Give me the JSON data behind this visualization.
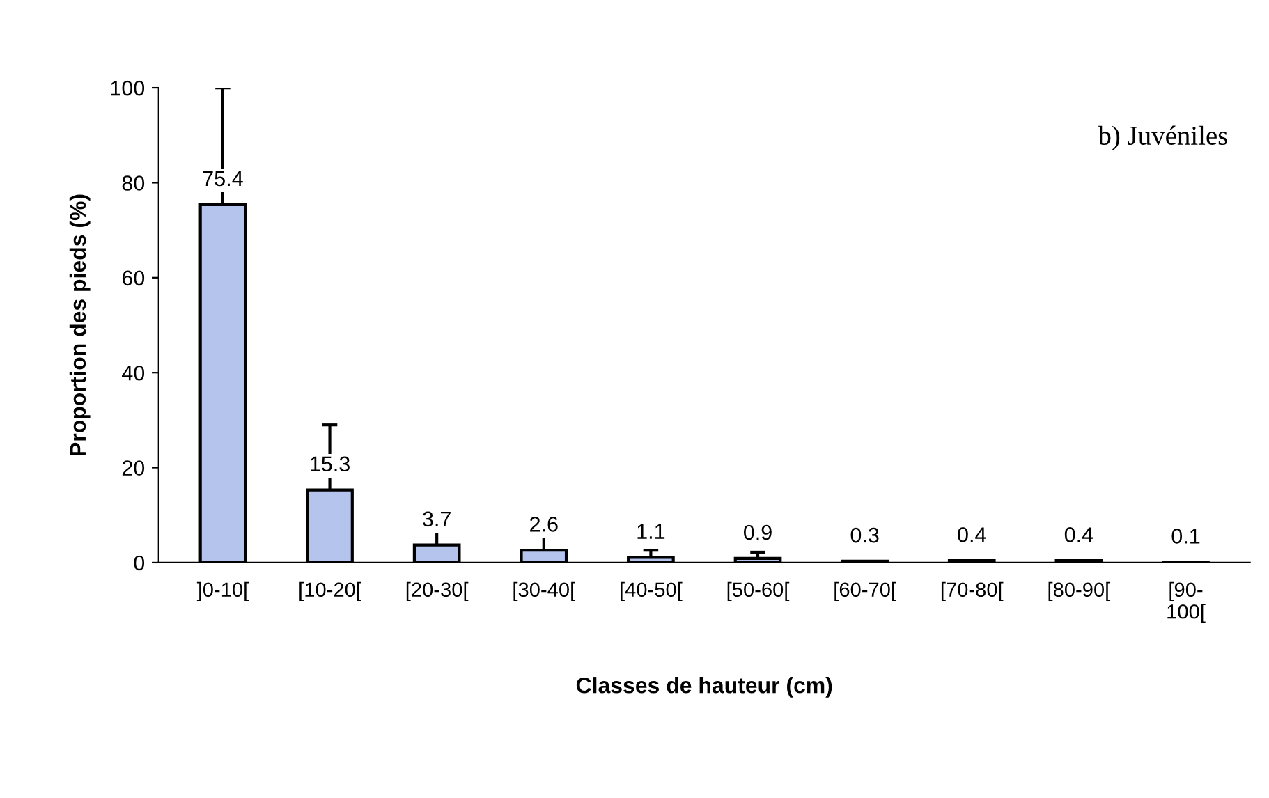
{
  "chart_data": {
    "type": "bar",
    "title": "b) Juvéniles",
    "xlabel": "Classes de hauteur (cm)",
    "ylabel": "Proportion des pieds (%)",
    "categories": [
      "]0-10[",
      "[10-20[",
      "[20-30[",
      "[30-40[",
      "[40-50[",
      "[50-60[",
      "[60-70[",
      "[70-80[",
      "[80-90[",
      "[90-\n100["
    ],
    "values": [
      75.4,
      15.3,
      3.7,
      2.6,
      1.1,
      0.9,
      0.3,
      0.4,
      0.4,
      0.1
    ],
    "errors": [
      [
        75.4,
        100
      ],
      [
        15.3,
        29
      ],
      [
        3.7,
        7.1
      ],
      [
        2.6,
        6.5
      ],
      [
        1.1,
        2.6
      ],
      [
        0.9,
        2.2
      ],
      null,
      null,
      null,
      null
    ],
    "color": "#b4c4ec",
    "data_labels": true,
    "ylim": [
      0,
      100
    ],
    "yticks": [
      0,
      20,
      40,
      60,
      80,
      100
    ],
    "grid": false,
    "legend": false
  }
}
